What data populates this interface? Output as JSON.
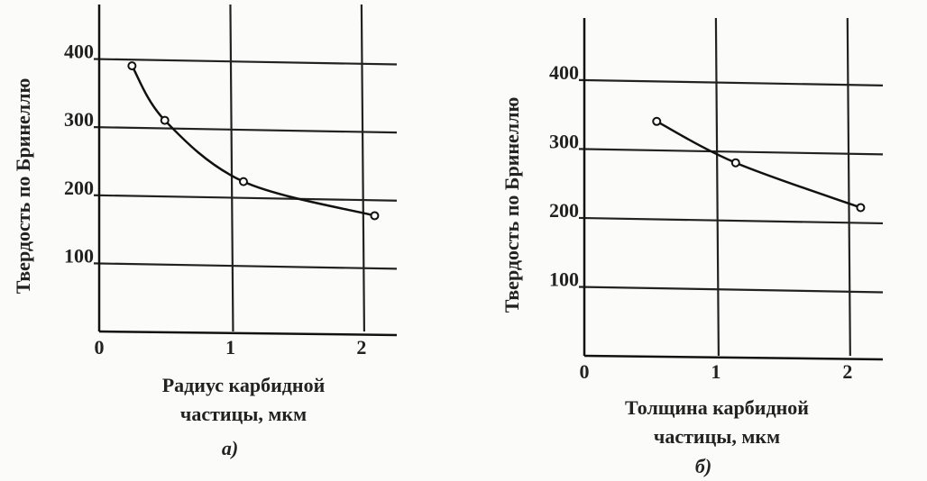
{
  "chart_data": [
    {
      "type": "line",
      "y_label": "Твердость по Бринеллю",
      "x_label_lines": [
        "Радиус карбидной",
        "частицы, мкм"
      ],
      "caption": "а)",
      "series": [
        {
          "color": "#111111",
          "x": [
            0.25,
            0.5,
            1.1,
            2.1
          ],
          "values": [
            390,
            310,
            220,
            170
          ]
        }
      ],
      "xlim": [
        0,
        2.2
      ],
      "ylim": [
        0,
        480
      ],
      "xticks": [
        0,
        1,
        2
      ],
      "yticks": [
        100,
        200,
        300,
        400
      ],
      "grid": true
    },
    {
      "type": "line",
      "y_label": "Твердость по Бринеллю",
      "x_label_lines": [
        "Толщина карбидной",
        "частицы, мкм"
      ],
      "caption": "б)",
      "series": [
        {
          "color": "#111111",
          "x": [
            0.55,
            1.15,
            2.1
          ],
          "values": [
            340,
            280,
            215
          ]
        }
      ],
      "xlim": [
        0,
        2.2
      ],
      "ylim": [
        0,
        490
      ],
      "xticks": [
        0,
        1,
        2
      ],
      "yticks": [
        100,
        200,
        300,
        400
      ],
      "grid": true
    }
  ]
}
